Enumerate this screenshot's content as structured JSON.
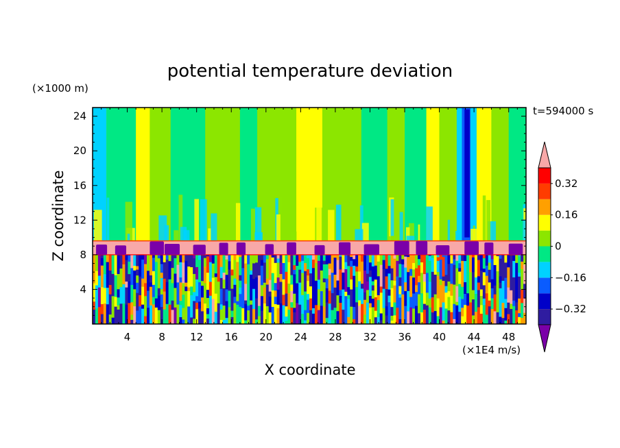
{
  "chart_data": {
    "type": "heatmap",
    "title": "potential temperature deviation",
    "xlabel": "X coordinate",
    "ylabel": "Z coordinate",
    "x_unit": "(×1E4 m/s)",
    "y_unit": "(×1000 m)",
    "time_label": "t=594000 s",
    "xlim": [
      0,
      50
    ],
    "ylim": [
      0,
      25
    ],
    "x_ticks": [
      4,
      8,
      12,
      16,
      20,
      24,
      28,
      32,
      36,
      40,
      44,
      48
    ],
    "y_ticks": [
      4,
      8,
      12,
      16,
      20,
      24
    ],
    "grid": false,
    "colorbar": {
      "labels": [
        "0.32",
        "0.16",
        "0",
        "−0.16",
        "−0.32"
      ],
      "label_values": [
        0.32,
        0.16,
        0,
        -0.16,
        -0.32
      ],
      "levels": [
        -0.4,
        -0.32,
        -0.24,
        -0.16,
        -0.08,
        0,
        0.08,
        0.16,
        0.24,
        0.32,
        0.4
      ],
      "colors": [
        "#7a00a8",
        "#2f1ca0",
        "#0000c8",
        "#0a5cff",
        "#00d2ff",
        "#00e884",
        "#8ce600",
        "#ffff00",
        "#ffa000",
        "#ff3c00",
        "#ff0000",
        "#f8a8a8"
      ],
      "extends": "both"
    },
    "regions": {
      "upper_layer_z": [
        9.6,
        25
      ],
      "inversion_layer_z": [
        8.0,
        9.6
      ],
      "turbulent_layer_z": [
        0,
        8.0
      ],
      "upper_layer_values": "mostly 0 to 0.16, some yellow columns 0.16–0.24, blue columns near x≈42–44",
      "inversion_layer_value": "> 0.4 (pink) with purple (< −0.4) blobs along its base",
      "turbulent_layer_values": "full range from < −0.4 to > 0.4"
    }
  }
}
